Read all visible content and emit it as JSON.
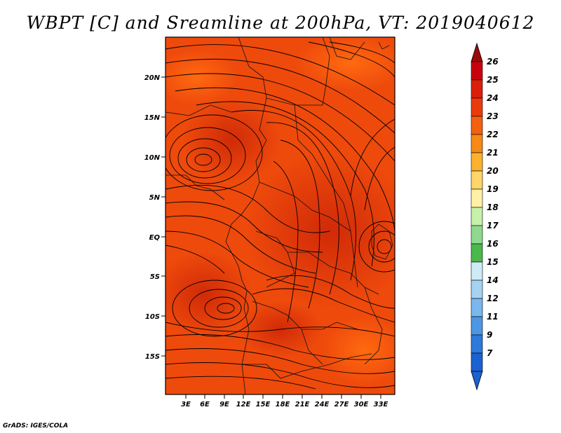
{
  "title": "WBPT [C] and Sreamline at 200hPa, VT: 2019040612",
  "credit": "GrADS: IGES/COLA",
  "map": {
    "lat_labels": [
      "20N",
      "15N",
      "10N",
      "5N",
      "EQ",
      "5S",
      "10S",
      "15S"
    ],
    "lon_labels": [
      "3E",
      "6E",
      "9E",
      "12E",
      "15E",
      "18E",
      "21E",
      "24E",
      "27E",
      "30E",
      "33E"
    ],
    "variable": "Wet-bulb potential temperature (C)",
    "level": "200hPa"
  },
  "colorbar": {
    "labels": [
      "26",
      "25",
      "24",
      "23",
      "22",
      "21",
      "20",
      "19",
      "18",
      "17",
      "16",
      "15",
      "14",
      "12",
      "11",
      "9",
      "7"
    ],
    "colors": [
      "#c8000e",
      "#dc1f0b",
      "#eb3b0c",
      "#f36010",
      "#f78a14",
      "#fbb12e",
      "#fdd568",
      "#fff0a6",
      "#c7f0a8",
      "#8ed98f",
      "#4bb84b",
      "#cdebf5",
      "#a6d2f2",
      "#7ab7ee",
      "#4d96e6",
      "#2d79dc",
      "#1a61d1"
    ]
  }
}
